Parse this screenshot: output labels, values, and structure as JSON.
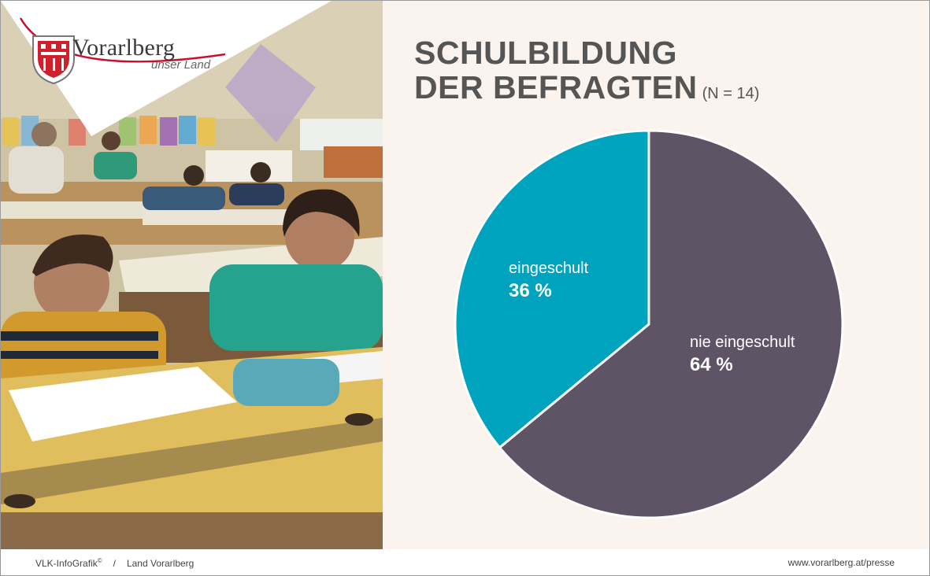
{
  "logo": {
    "name": "Vorarlberg",
    "tagline": "unser Land"
  },
  "title": {
    "line1": "SCHULBILDUNG",
    "line2": "DER BEFRAGTEN",
    "sample": "(N = 14)"
  },
  "chart_data": {
    "type": "pie",
    "title": "SCHULBILDUNG DER BEFRAGTEN",
    "slices": [
      {
        "label": "nie eingeschult",
        "value": 64,
        "value_label": "64 %",
        "color": "#5e5466"
      },
      {
        "label": "eingeschult",
        "value": 36,
        "value_label": "36 %",
        "color": "#00a3bd"
      }
    ]
  },
  "footer": {
    "source": "VLK-InfoGrafik",
    "copyright": "©",
    "separator": "/",
    "org": "Land Vorarlberg",
    "url": "www.vorarlberg.at/presse"
  }
}
